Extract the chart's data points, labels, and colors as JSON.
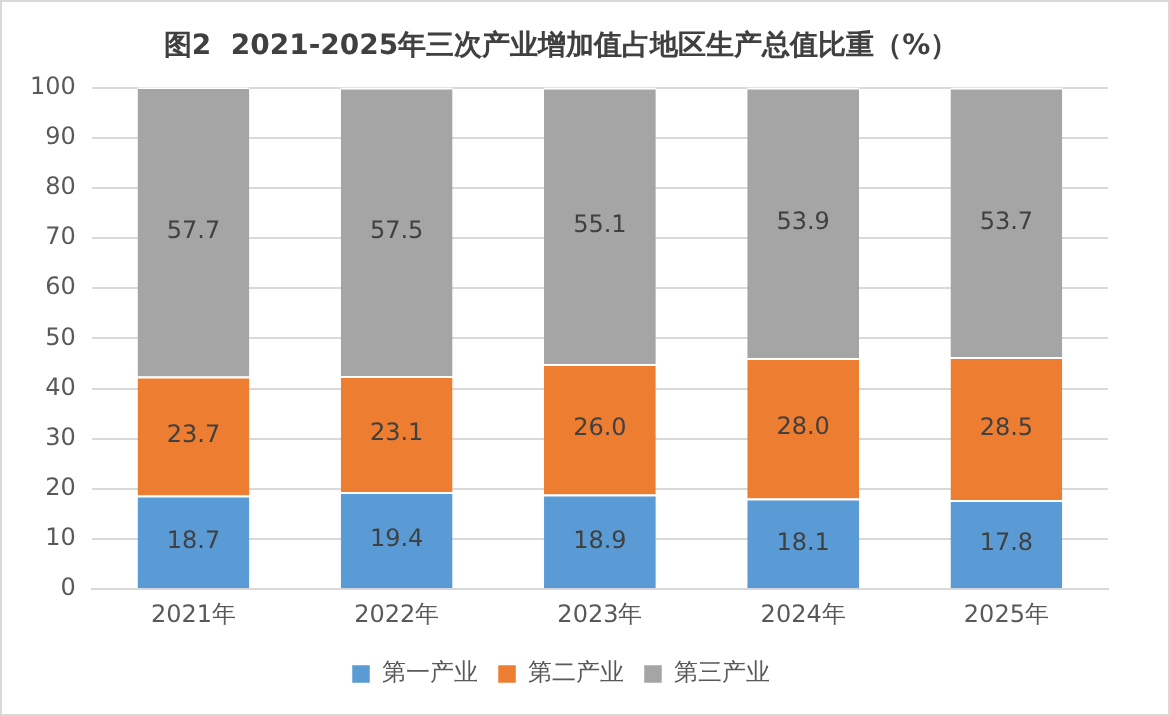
{
  "chart_data": {
    "type": "bar",
    "title": "图2  2021-2025年三次产业增加值占地区生产总值比重（%）",
    "categories": [
      "2021年",
      "2022年",
      "2023年",
      "2024年",
      "2025年"
    ],
    "stacked": true,
    "series": [
      {
        "name": "第一产业",
        "color": "#5b9bd5",
        "values": [
          18.7,
          19.4,
          18.9,
          18.1,
          17.8
        ],
        "value_labels": [
          "18.7",
          "19.4",
          "18.9",
          "18.1",
          "17.8"
        ]
      },
      {
        "name": "第二产业",
        "color": "#ed7d31",
        "values": [
          23.7,
          23.1,
          26.0,
          28.0,
          28.5
        ],
        "value_labels": [
          "23.7",
          "23.1",
          "26.0",
          "28.0",
          "28.5"
        ]
      },
      {
        "name": "第三产业",
        "color": "#a5a5a5",
        "values": [
          57.7,
          57.5,
          55.1,
          53.9,
          53.7
        ],
        "value_labels": [
          "57.7",
          "57.5",
          "55.1",
          "53.9",
          "53.7"
        ]
      }
    ],
    "ylim": [
      0,
      100
    ],
    "yticks": [
      0,
      10,
      20,
      30,
      40,
      50,
      60,
      70,
      80,
      90,
      100
    ],
    "grid": "y",
    "legend": "bottom"
  }
}
